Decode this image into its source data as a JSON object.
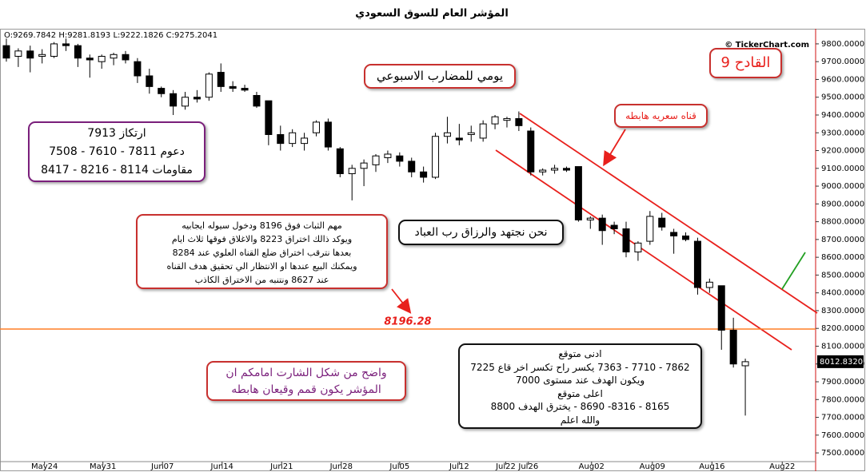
{
  "chart_data": {
    "type": "candlestick",
    "title": "المؤشر العام للسوق السعودي",
    "ohlc_header": "O:9269.7842 H:9281.8193 L:9222.1826 C:9275.2041",
    "watermark": "© TickerChart.com",
    "open": [
      9790,
      9730,
      9760,
      9730,
      9730,
      9800,
      9790,
      9720,
      9700,
      9720,
      9740,
      9700,
      9620,
      9550,
      9520,
      9450,
      9500,
      9500,
      9640,
      9560,
      9550,
      9510,
      9480,
      9290,
      9240,
      9240,
      9300,
      9360,
      9210,
      9070,
      9100,
      9120,
      9160,
      9170,
      9140,
      9080,
      9050,
      9280,
      9270,
      9290,
      9270,
      9350,
      9370,
      9380,
      9310,
      9080,
      9090,
      9100,
      9110,
      8810,
      8820,
      8780,
      8760,
      8630,
      8690,
      8820,
      8740,
      8720,
      8690,
      8430,
      8440,
      8190,
      7990
    ],
    "high": [
      9830,
      9775,
      9790,
      9770,
      9810,
      9830,
      9800,
      9740,
      9740,
      9750,
      9760,
      9720,
      9660,
      9560,
      9540,
      9530,
      9540,
      9640,
      9690,
      9590,
      9570,
      9530,
      9480,
      9340,
      9320,
      9300,
      9370,
      9380,
      9220,
      9120,
      9150,
      9180,
      9200,
      9190,
      9160,
      9110,
      9300,
      9390,
      9350,
      9340,
      9370,
      9400,
      9390,
      9420,
      9330,
      9100,
      9120,
      9110,
      9110,
      8830,
      8840,
      8800,
      8800,
      8690,
      8860,
      8850,
      8760,
      8740,
      8710,
      8480,
      8440,
      8260,
      8030
    ],
    "low": [
      9700,
      9670,
      9640,
      9690,
      9720,
      9760,
      9670,
      9610,
      9660,
      9680,
      9690,
      9580,
      9520,
      9500,
      9400,
      9430,
      9470,
      9480,
      9530,
      9530,
      9530,
      9440,
      9230,
      9200,
      9220,
      9200,
      9280,
      9200,
      9050,
      8920,
      9000,
      9080,
      9130,
      9110,
      9050,
      9020,
      9040,
      9240,
      9230,
      9250,
      9250,
      9320,
      9330,
      9310,
      9060,
      9060,
      9070,
      9080,
      8800,
      8760,
      8670,
      8730,
      8600,
      8580,
      8670,
      8750,
      8620,
      8690,
      8390,
      8400,
      8080,
      7980,
      7710
    ],
    "close": [
      9720,
      9760,
      9720,
      9740,
      9800,
      9790,
      9720,
      9710,
      9730,
      9740,
      9710,
      9620,
      9560,
      9520,
      9450,
      9500,
      9490,
      9630,
      9560,
      9550,
      9540,
      9450,
      9290,
      9240,
      9300,
      9270,
      9360,
      9220,
      9070,
      9100,
      9130,
      9170,
      9180,
      9140,
      9080,
      9050,
      9280,
      9300,
      9260,
      9300,
      9350,
      9390,
      9380,
      9340,
      9080,
      9090,
      9100,
      9090,
      8810,
      8820,
      8750,
      8760,
      8630,
      8680,
      8830,
      8770,
      8720,
      8700,
      8430,
      8460,
      8190,
      8000,
      8012.832
    ],
    "last_price": {
      "value": 8012.832,
      "label": "8012.8320"
    },
    "level": {
      "value": 8196.28,
      "label": "8196.28",
      "color": "#ff7f27"
    },
    "up_color": "#ffffff",
    "down_color": "#000000",
    "xlim": [
      -0.4,
      67.9
    ],
    "xticks": [
      {
        "value": 3.2,
        "label": "May24"
      },
      {
        "value": 8.1,
        "label": "May31"
      },
      {
        "value": 13.1,
        "label": "Jun07"
      },
      {
        "value": 18.1,
        "label": "Jun14"
      },
      {
        "value": 23.1,
        "label": "Jun21"
      },
      {
        "value": 28.1,
        "label": "Jun28"
      },
      {
        "value": 33.0,
        "label": "Jul05"
      },
      {
        "value": 38.0,
        "label": "Jul12"
      },
      {
        "value": 41.9,
        "label": "Jul22"
      },
      {
        "value": 43.8,
        "label": "Jul26"
      },
      {
        "value": 49.1,
        "label": "Aug02"
      },
      {
        "value": 54.2,
        "label": "Aug09"
      },
      {
        "value": 59.2,
        "label": "Aug16"
      },
      {
        "value": 65.1,
        "label": "Aug22"
      }
    ],
    "ylim": [
      7451,
      9867
    ],
    "yticks": [
      {
        "value": 9800,
        "label": "9800.0000"
      },
      {
        "value": 9700,
        "label": "9700.0000"
      },
      {
        "value": 9600,
        "label": "9600.0000"
      },
      {
        "value": 9500,
        "label": "9500.0000"
      },
      {
        "value": 9400,
        "label": "9400.0000"
      },
      {
        "value": 9300,
        "label": "9300.0000"
      },
      {
        "value": 9200,
        "label": "9200.0000"
      },
      {
        "value": 9100,
        "label": "9100.0000"
      },
      {
        "value": 9000,
        "label": "9000.0000"
      },
      {
        "value": 8900,
        "label": "8900.0000"
      },
      {
        "value": 8800,
        "label": "8800.0000"
      },
      {
        "value": 8700,
        "label": "8700.0000"
      },
      {
        "value": 8600,
        "label": "8600.0000"
      },
      {
        "value": 8500,
        "label": "8500.0000"
      },
      {
        "value": 8400,
        "label": "8400.0000"
      },
      {
        "value": 8300,
        "label": "8300.0000"
      },
      {
        "value": 8200,
        "label": "8200.0000"
      },
      {
        "value": 8100,
        "label": "8100.0000"
      },
      {
        "value": 8000,
        "label": "8000.0000"
      },
      {
        "value": 7900,
        "label": "7900.0000"
      },
      {
        "value": 7800,
        "label": "7800.0000"
      },
      {
        "value": 7700,
        "label": "7700.0000"
      },
      {
        "value": 7600,
        "label": "7600.0000"
      },
      {
        "value": 7500,
        "label": "7500.0000"
      }
    ],
    "annotations": {
      "trigger": "القادح 9",
      "timeframe": "يومي للمضارب الاسبوعي",
      "channel": "قناه سعريه هابطه",
      "levels": [
        "ارتكاز 7913",
        "دعوم 7811 - 7610 - 7508",
        "مقاومات 8114 - 8216 - 8417"
      ],
      "motto": "نحن نجتهد والرزاق رب العباد",
      "plan": [
        "مهم الثبات فوق 8196 ودخول سيوله ايجابيه",
        "ويوكد ذالك اختراق 8223 والاغلاق فوقها ثلاث ايام",
        "بعدها نترقب اختراق ضلع القناه العلوي عند 8284",
        "ويمكنك البيع عندها او الانتظار الي تحقيق هدف القناه",
        "عند 8627 ونتنبه من الاختراق الكاذب"
      ],
      "observation": [
        "واضح من شكل الشارت امامكم ان",
        "المؤشر يكون قمم وقيعان هابطه"
      ],
      "targets": [
        "ادنى متوقع",
        "7862 - 7710 - 7363 يكسر راح تكسر اخر قاع 7225",
        "ويكون الهدف عند مستوى 7000",
        "اعلى متوقع",
        "8165 - 8316- 8690 - يخترق الهدف 8800",
        "والله اعلم"
      ]
    }
  }
}
